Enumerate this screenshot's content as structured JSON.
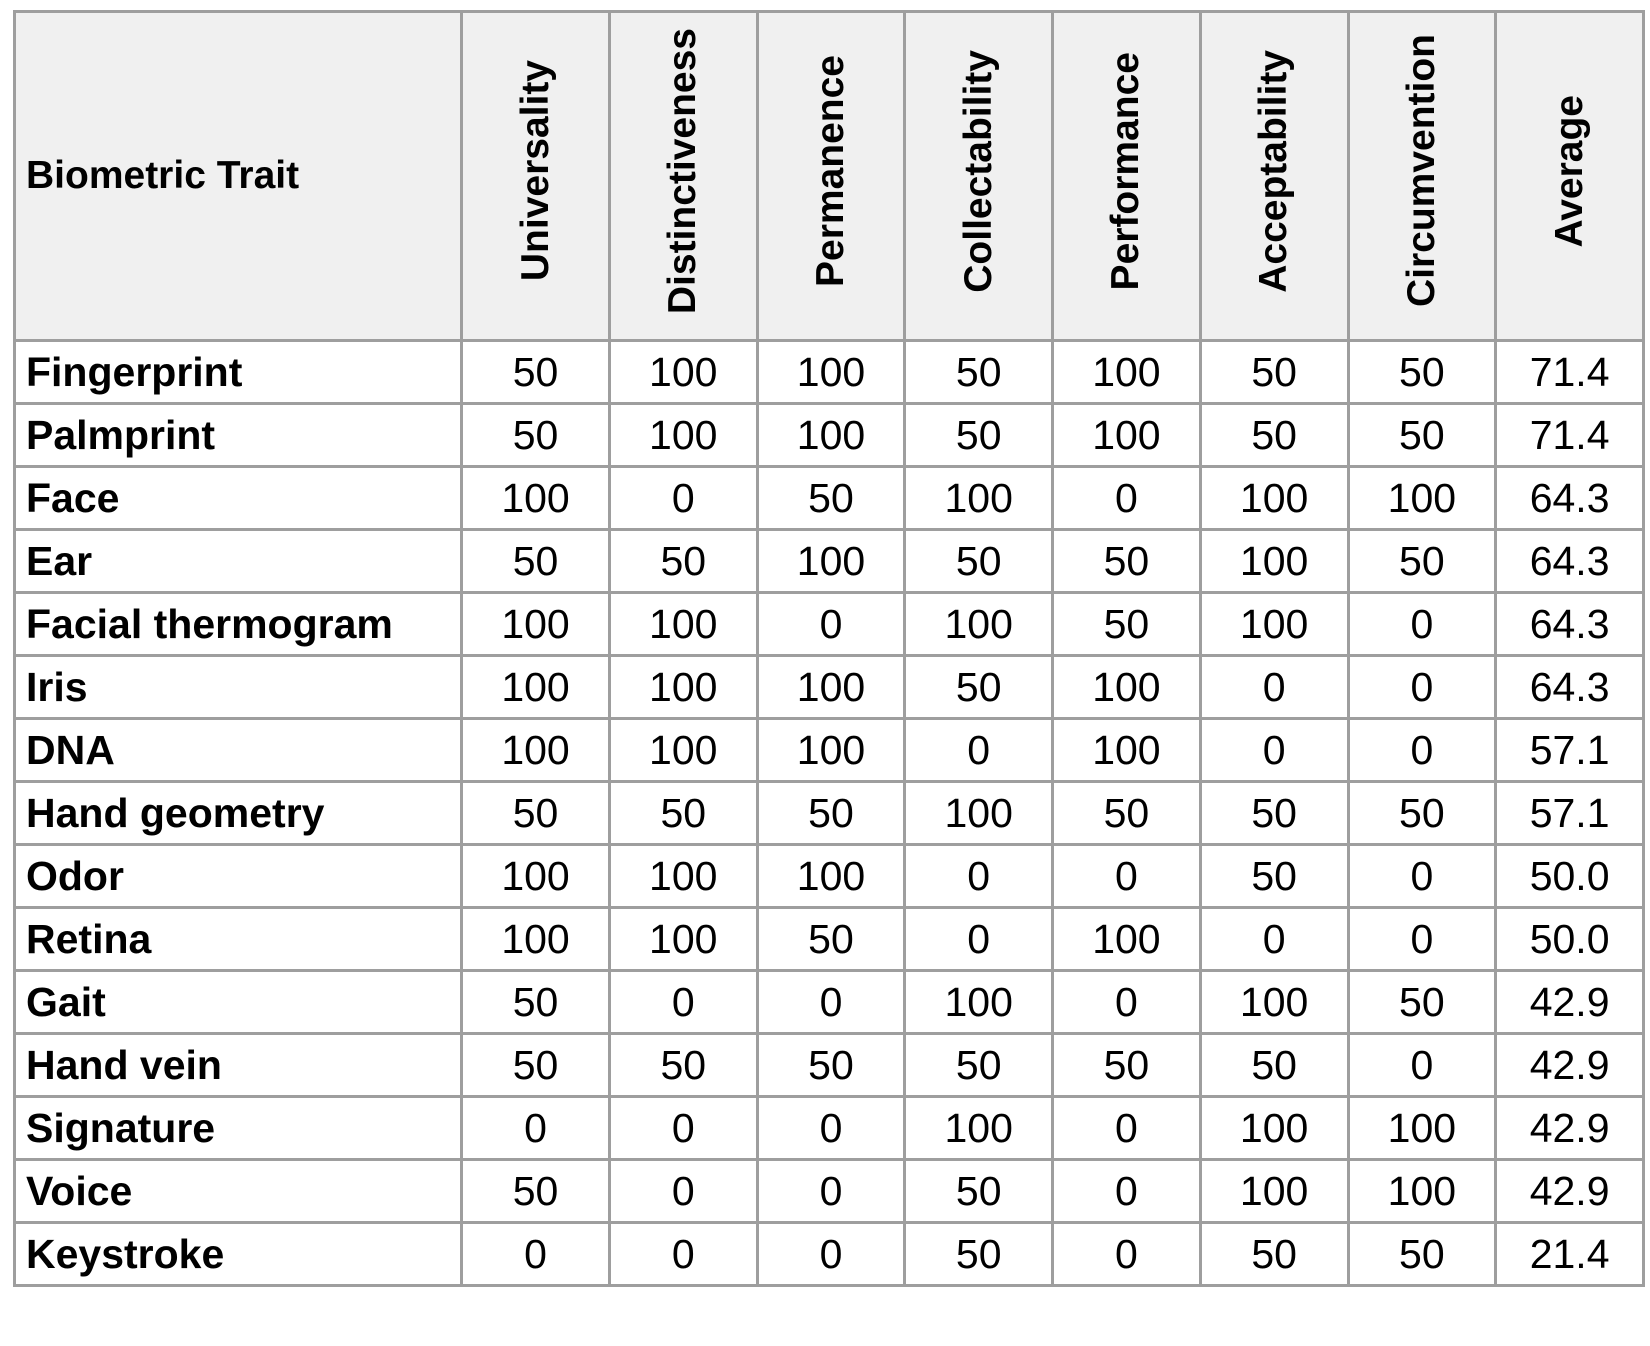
{
  "chart_data": {
    "type": "table",
    "columns": [
      "Biometric Trait",
      "Universality",
      "Distinctiveness",
      "Permanence",
      "Collectability",
      "Performance",
      "Acceptability",
      "Circumvention",
      "Average"
    ],
    "rows": [
      [
        "Fingerprint",
        "50",
        "100",
        "100",
        "50",
        "100",
        "50",
        "50",
        "71.4"
      ],
      [
        "Palmprint",
        "50",
        "100",
        "100",
        "50",
        "100",
        "50",
        "50",
        "71.4"
      ],
      [
        "Face",
        "100",
        "0",
        "50",
        "100",
        "0",
        "100",
        "100",
        "64.3"
      ],
      [
        "Ear",
        "50",
        "50",
        "100",
        "50",
        "50",
        "100",
        "50",
        "64.3"
      ],
      [
        "Facial thermogram",
        "100",
        "100",
        "0",
        "100",
        "50",
        "100",
        "0",
        "64.3"
      ],
      [
        "Iris",
        "100",
        "100",
        "100",
        "50",
        "100",
        "0",
        "0",
        "64.3"
      ],
      [
        "DNA",
        "100",
        "100",
        "100",
        "0",
        "100",
        "0",
        "0",
        "57.1"
      ],
      [
        "Hand geometry",
        "50",
        "50",
        "50",
        "100",
        "50",
        "50",
        "50",
        "57.1"
      ],
      [
        "Odor",
        "100",
        "100",
        "100",
        "0",
        "0",
        "50",
        "0",
        "50.0"
      ],
      [
        "Retina",
        "100",
        "100",
        "50",
        "0",
        "100",
        "0",
        "0",
        "50.0"
      ],
      [
        "Gait",
        "50",
        "0",
        "0",
        "100",
        "0",
        "100",
        "50",
        "42.9"
      ],
      [
        "Hand vein",
        "50",
        "50",
        "50",
        "50",
        "50",
        "50",
        "0",
        "42.9"
      ],
      [
        "Signature",
        "0",
        "0",
        "0",
        "100",
        "0",
        "100",
        "100",
        "42.9"
      ],
      [
        "Voice",
        "50",
        "0",
        "0",
        "50",
        "0",
        "100",
        "100",
        "42.9"
      ],
      [
        "Keystroke",
        "0",
        "0",
        "0",
        "50",
        "0",
        "50",
        "50",
        "21.4"
      ]
    ],
    "colors": {
      "header_bg": "#f0f0f0",
      "grid": "#9e9e9e",
      "text": "#000000"
    }
  }
}
